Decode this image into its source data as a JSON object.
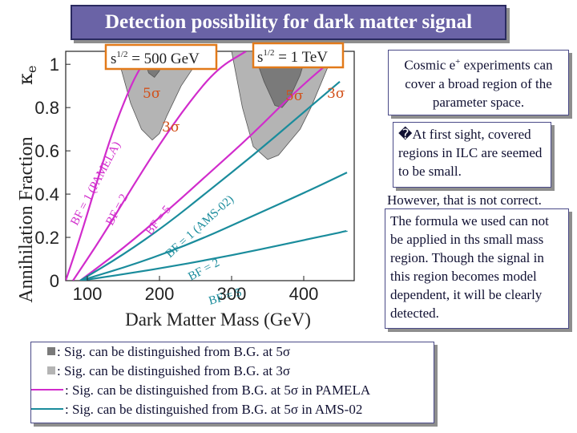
{
  "title": "Detection possibility for dark matter signal",
  "notes": {
    "note1_line1": "Cosmic e",
    "note1_sup": "+",
    "note1_rest": " experiments can cover a broad region of the parameter space.",
    "note2_bullet": "�",
    "note2_text": "At first sight, covered regions in ILC are seemed to be small.",
    "note3_first": "However, that is not correct.",
    "note3_text": "The formula we used can not be applied in ths small mass region. Though the signal in this region becomes model dependent, it will be clearly detected."
  },
  "legend": {
    "dark_gray": ": Sig. can be distinguished from B.G. at 5σ",
    "light_gray": ": Sig. can be distinguished from B.G. at 3σ",
    "pamela": ": Sig. can be distinguished from B.G. at 5σ in PAMELA",
    "ams": ": Sig. can be distinguished from B.G. at 5σ in AMS-02"
  },
  "colors": {
    "title_bg": "#6a63a6",
    "pamela": "#d12ccc",
    "ams": "#1a8c9c",
    "dark_region": "#7a7a7a",
    "light_region": "#b4b4b4",
    "region_box": "#e27a1a",
    "sigma_text": "#d2501a"
  },
  "chart_data": {
    "type": "line",
    "xlabel": "Dark Matter Mass (GeV)",
    "ylabel": "Annihilation Fraction",
    "ylabel_symbol": "κ",
    "ylabel_sub": "e",
    "xlim": [
      70,
      470
    ],
    "ylim": [
      0,
      1.06
    ],
    "xticks": [
      100,
      200,
      300,
      400
    ],
    "yticks": [
      0,
      0.2,
      0.4,
      0.6,
      0.8,
      1
    ],
    "ytick_labels": [
      "0",
      "0.2",
      "0.4",
      "0.6",
      "0.8",
      "1"
    ],
    "energy_boxes": [
      {
        "label": "s",
        "sup": "1/2",
        "value": " = 500 GeV"
      },
      {
        "label": "s",
        "sup": "1/2",
        "value": " = 1 TeV"
      }
    ],
    "sigma_labels": [
      "5σ",
      "3σ",
      "5σ",
      "3σ"
    ],
    "series": [
      {
        "name": "BF = 1 (PAMELA)",
        "group": "PAMELA",
        "x": [
          70,
          90,
          110,
          130,
          150,
          170,
          190
        ],
        "y": [
          0.0,
          0.2,
          0.42,
          0.64,
          0.82,
          0.97,
          1.06
        ]
      },
      {
        "name": "BF = 2",
        "group": "PAMELA",
        "x": [
          80,
          120,
          160,
          200,
          240,
          280,
          320
        ],
        "y": [
          0.0,
          0.2,
          0.42,
          0.63,
          0.82,
          0.98,
          1.06
        ]
      },
      {
        "name": "BF = 5",
        "group": "PAMELA",
        "x": [
          90,
          150,
          210,
          270,
          330,
          390,
          450
        ],
        "y": [
          0.0,
          0.15,
          0.32,
          0.5,
          0.68,
          0.88,
          1.05
        ]
      },
      {
        "name": "BF = 1 (AMS-02)",
        "group": "AMS-02",
        "x": [
          90,
          150,
          210,
          270,
          330,
          390,
          450
        ],
        "y": [
          0.0,
          0.12,
          0.26,
          0.42,
          0.58,
          0.75,
          0.92
        ]
      },
      {
        "name": "BF = 2",
        "group": "AMS-02",
        "x": [
          90,
          170,
          250,
          330,
          410,
          460
        ],
        "y": [
          0.0,
          0.08,
          0.18,
          0.3,
          0.42,
          0.5
        ]
      },
      {
        "name": "BF = 5",
        "group": "AMS-02",
        "x": [
          90,
          190,
          290,
          390,
          460
        ],
        "y": [
          0.0,
          0.05,
          0.11,
          0.18,
          0.23
        ]
      }
    ],
    "regions": [
      {
        "name": "500 GeV 3σ",
        "sigma": "3σ",
        "x": [
          140,
          160,
          175,
          190,
          200,
          210,
          230,
          250,
          262
        ],
        "y": [
          1.06,
          0.82,
          0.7,
          0.65,
          0.68,
          0.76,
          0.9,
          1.0,
          1.06
        ]
      },
      {
        "name": "500 GeV 5σ",
        "sigma": "5σ",
        "x": [
          175,
          185,
          193,
          200,
          206
        ],
        "y": [
          1.06,
          0.96,
          0.94,
          0.97,
          1.06
        ]
      },
      {
        "name": "1 TeV 3σ",
        "sigma": "3σ",
        "x": [
          300,
          315,
          330,
          350,
          365,
          380,
          395,
          410,
          425,
          435,
          445
        ],
        "y": [
          1.06,
          0.8,
          0.62,
          0.56,
          0.58,
          0.64,
          0.7,
          0.8,
          0.92,
          1.0,
          1.06
        ]
      },
      {
        "name": "1 TeV 5σ",
        "sigma": "5σ",
        "x": [
          330,
          345,
          360,
          370,
          380,
          395,
          405
        ],
        "y": [
          1.06,
          0.92,
          0.81,
          0.8,
          0.84,
          0.95,
          1.06
        ]
      }
    ]
  }
}
